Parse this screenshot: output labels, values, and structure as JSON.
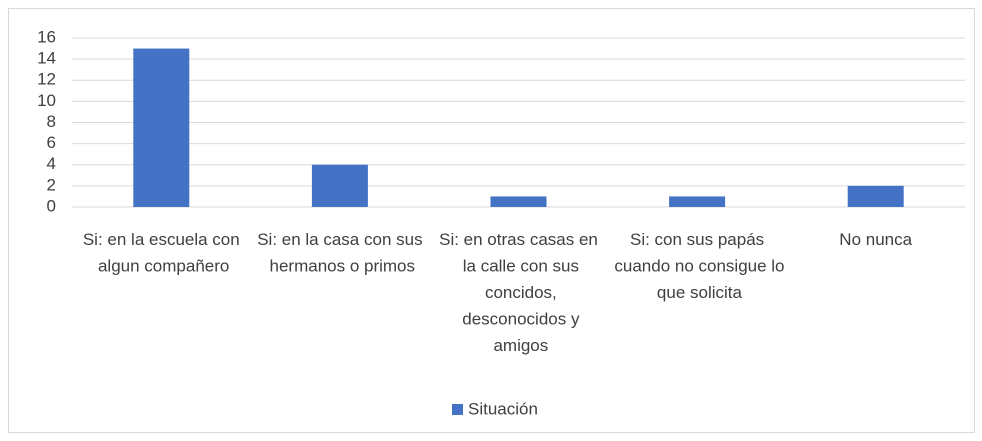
{
  "chart_data": {
    "type": "bar",
    "categories": [
      "Si: en la escuela con algun compañero",
      "Si: en la casa con sus hermanos o primos",
      "Si: en otras casas en la calle con sus concidos, desconocidos y amigos",
      "Si: con sus papás cuando no consigue lo que solicita",
      "No nunca"
    ],
    "series": [
      {
        "name": "Situación",
        "color": "#4472c4",
        "values": [
          15,
          4,
          1,
          1,
          2
        ]
      }
    ],
    "ylim": [
      0,
      16
    ],
    "yticks": [
      0,
      2,
      4,
      6,
      8,
      10,
      12,
      14,
      16
    ],
    "grid": true,
    "legend": "bottom"
  }
}
